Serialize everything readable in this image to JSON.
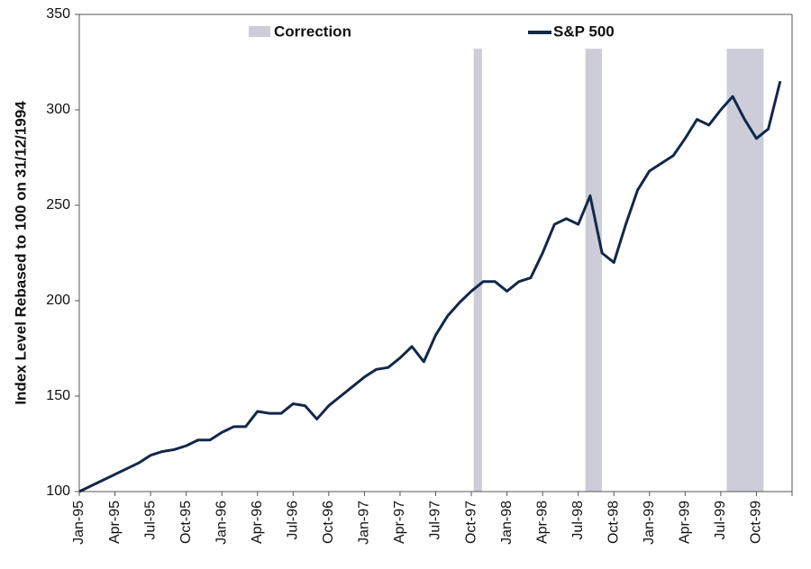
{
  "chart_data": {
    "type": "line",
    "y_label": "Index Level Rebased to 100 on 31/12/1994",
    "categories": [
      "Jan-95",
      null,
      null,
      "Apr-95",
      null,
      null,
      "Jul-95",
      null,
      null,
      "Oct-95",
      null,
      null,
      "Jan-96",
      null,
      null,
      "Apr-96",
      null,
      null,
      "Jul-96",
      null,
      null,
      "Oct-96",
      null,
      null,
      "Jan-97",
      null,
      null,
      "Apr-97",
      null,
      null,
      "Jul-97",
      null,
      null,
      "Oct-97",
      null,
      null,
      "Jan-98",
      null,
      null,
      "Apr-98",
      null,
      null,
      "Jul-98",
      null,
      null,
      "Oct-98",
      null,
      null,
      "Jan-99",
      null,
      null,
      "Apr-99",
      null,
      null,
      "Jul-99",
      null,
      null,
      "Oct-99",
      null,
      null
    ],
    "series": [
      {
        "name": "S&P 500",
        "color": "#12284a",
        "values": [
          100,
          103,
          106,
          109,
          112,
          115,
          119,
          121,
          122,
          124,
          127,
          127,
          131,
          134,
          134,
          142,
          141,
          141,
          146,
          145,
          138,
          145,
          150,
          155,
          160,
          164,
          165,
          170,
          176,
          168,
          182,
          192,
          199,
          205,
          210,
          210,
          205,
          210,
          212,
          225,
          240,
          243,
          240,
          255,
          225,
          220,
          240,
          258,
          268,
          272,
          276,
          285,
          295,
          292,
          300,
          307,
          295,
          285,
          290,
          315
        ]
      }
    ],
    "corrections": {
      "name": "Correction",
      "color": "#cccdd8",
      "top": 332,
      "periods": [
        [
          33.2,
          33.9
        ],
        [
          42.6,
          44.0
        ],
        [
          54.5,
          57.6
        ]
      ]
    },
    "ylim": [
      100,
      350
    ],
    "yticks": [
      100,
      150,
      200,
      250,
      300,
      350
    ]
  }
}
